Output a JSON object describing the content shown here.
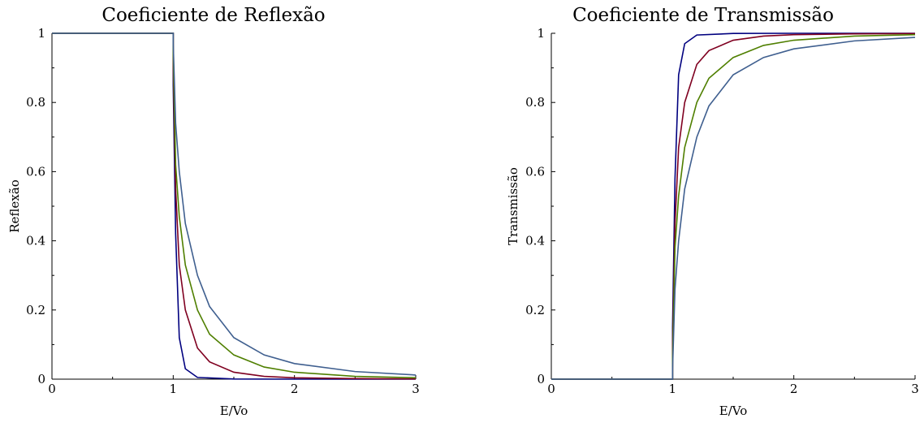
{
  "chart_data": [
    {
      "type": "line",
      "title": "Coeficiente de Reflexão",
      "xlabel": "E/Vo",
      "ylabel": "Reflexão",
      "xlim": [
        0,
        3
      ],
      "ylim": [
        0,
        1
      ],
      "xticks": [
        "0",
        "1",
        "2",
        "3"
      ],
      "yticks": [
        "0",
        "0.2",
        "0.4",
        "0.6",
        "0.8",
        "1"
      ],
      "grid": false,
      "legend": "none",
      "series": [
        {
          "color": "#00007f",
          "points": [
            [
              0,
              1
            ],
            [
              1,
              1
            ],
            [
              1,
              0.85
            ],
            [
              1.02,
              0.42
            ],
            [
              1.05,
              0.12
            ],
            [
              1.1,
              0.03
            ],
            [
              1.2,
              0.005
            ],
            [
              1.5,
              0.0005
            ],
            [
              2,
              0
            ],
            [
              3,
              0
            ]
          ]
        },
        {
          "color": "#7f0020",
          "points": [
            [
              0,
              1
            ],
            [
              1,
              1
            ],
            [
              1,
              0.9
            ],
            [
              1.02,
              0.55
            ],
            [
              1.05,
              0.33
            ],
            [
              1.1,
              0.2
            ],
            [
              1.2,
              0.09
            ],
            [
              1.3,
              0.05
            ],
            [
              1.5,
              0.02
            ],
            [
              1.75,
              0.008
            ],
            [
              2,
              0.004
            ],
            [
              2.5,
              0.0015
            ],
            [
              3,
              0.0007
            ]
          ]
        },
        {
          "color": "#4f7f00",
          "points": [
            [
              0,
              1
            ],
            [
              1,
              1
            ],
            [
              1,
              0.94
            ],
            [
              1.02,
              0.62
            ],
            [
              1.05,
              0.47
            ],
            [
              1.1,
              0.33
            ],
            [
              1.2,
              0.2
            ],
            [
              1.3,
              0.13
            ],
            [
              1.5,
              0.07
            ],
            [
              1.75,
              0.035
            ],
            [
              2,
              0.02
            ],
            [
              2.5,
              0.008
            ],
            [
              3,
              0.004
            ]
          ]
        },
        {
          "color": "#3f5f8f",
          "points": [
            [
              0,
              1
            ],
            [
              1,
              1
            ],
            [
              1,
              0.97
            ],
            [
              1.02,
              0.74
            ],
            [
              1.05,
              0.6
            ],
            [
              1.1,
              0.45
            ],
            [
              1.2,
              0.3
            ],
            [
              1.3,
              0.21
            ],
            [
              1.5,
              0.12
            ],
            [
              1.75,
              0.07
            ],
            [
              2,
              0.045
            ],
            [
              2.5,
              0.022
            ],
            [
              3,
              0.012
            ]
          ]
        }
      ]
    },
    {
      "type": "line",
      "title": "Coeficiente de Transmissão",
      "xlabel": "E/Vo",
      "ylabel": "Transmissão",
      "xlim": [
        0,
        3
      ],
      "ylim": [
        0,
        1
      ],
      "xticks": [
        "0",
        "1",
        "2",
        "3"
      ],
      "yticks": [
        "0",
        "0.2",
        "0.4",
        "0.6",
        "0.8",
        "1"
      ],
      "grid": false,
      "legend": "none",
      "series": [
        {
          "color": "#00007f",
          "points": [
            [
              0,
              0
            ],
            [
              1,
              0
            ],
            [
              1,
              0.15
            ],
            [
              1.02,
              0.58
            ],
            [
              1.05,
              0.88
            ],
            [
              1.1,
              0.97
            ],
            [
              1.2,
              0.995
            ],
            [
              1.5,
              0.9995
            ],
            [
              2,
              1
            ],
            [
              3,
              1
            ]
          ]
        },
        {
          "color": "#7f0020",
          "points": [
            [
              0,
              0
            ],
            [
              1,
              0
            ],
            [
              1,
              0.1
            ],
            [
              1.02,
              0.45
            ],
            [
              1.05,
              0.67
            ],
            [
              1.1,
              0.8
            ],
            [
              1.2,
              0.91
            ],
            [
              1.3,
              0.95
            ],
            [
              1.5,
              0.98
            ],
            [
              1.75,
              0.992
            ],
            [
              2,
              0.996
            ],
            [
              2.5,
              0.9985
            ],
            [
              3,
              0.9993
            ]
          ]
        },
        {
          "color": "#4f7f00",
          "points": [
            [
              0,
              0
            ],
            [
              1,
              0
            ],
            [
              1,
              0.06
            ],
            [
              1.02,
              0.38
            ],
            [
              1.05,
              0.53
            ],
            [
              1.1,
              0.67
            ],
            [
              1.2,
              0.8
            ],
            [
              1.3,
              0.87
            ],
            [
              1.5,
              0.93
            ],
            [
              1.75,
              0.965
            ],
            [
              2,
              0.98
            ],
            [
              2.5,
              0.992
            ],
            [
              3,
              0.996
            ]
          ]
        },
        {
          "color": "#3f5f8f",
          "points": [
            [
              0,
              0
            ],
            [
              1,
              0
            ],
            [
              1,
              0.03
            ],
            [
              1.02,
              0.26
            ],
            [
              1.05,
              0.4
            ],
            [
              1.1,
              0.55
            ],
            [
              1.2,
              0.7
            ],
            [
              1.3,
              0.79
            ],
            [
              1.5,
              0.88
            ],
            [
              1.75,
              0.93
            ],
            [
              2,
              0.955
            ],
            [
              2.5,
              0.978
            ],
            [
              3,
              0.988
            ]
          ]
        }
      ]
    }
  ]
}
